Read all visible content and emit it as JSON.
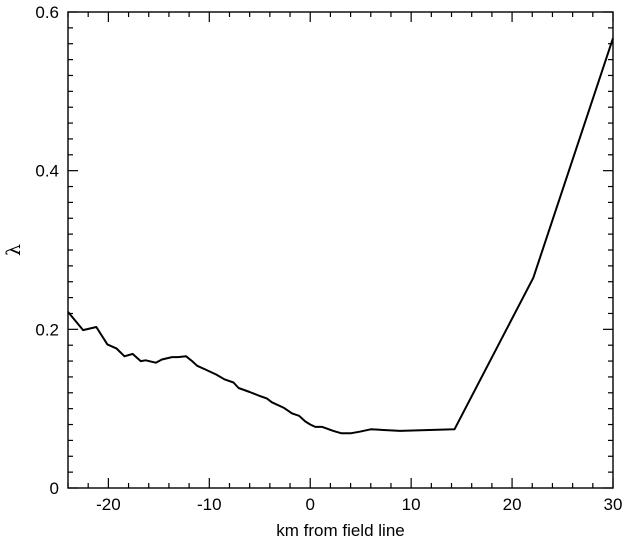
{
  "chart_data": {
    "type": "line",
    "title": "",
    "xlabel": "km from field line",
    "ylabel": "λ",
    "xlim": [
      -24,
      30
    ],
    "ylim": [
      0,
      0.6
    ],
    "x_ticks": [
      -20,
      -10,
      0,
      10,
      20,
      30
    ],
    "x_tick_labels": [
      "-20",
      "-10",
      "0",
      "10",
      "20",
      "30"
    ],
    "y_ticks": [
      0,
      0.2,
      0.4,
      0.6
    ],
    "y_tick_labels": [
      "0",
      "0.2",
      "0.4",
      "0.6"
    ],
    "x_minor_step": 2,
    "y_minor_step": 0.02,
    "grid": false,
    "line_color": "#000000",
    "series": [
      {
        "x": [
          -24,
          -22.5,
          -21.2,
          -20.1,
          -19.2,
          -18.4,
          -17.6,
          -16.8,
          -16.3,
          -15.3,
          -14.7,
          -13.7,
          -13.1,
          -12.3,
          -11.7,
          -11.2,
          -10.5,
          -9.3,
          -8.5,
          -7.6,
          -7.1,
          -6.0,
          -5.0,
          -4.3,
          -3.8,
          -2.6,
          -1.8,
          -1.1,
          -0.5,
          0.0,
          0.5,
          1.2,
          2.3,
          3.1,
          4.0,
          4.9,
          6.0,
          8.9,
          14.3,
          22.1,
          30.0
        ],
        "y": [
          0.222,
          0.199,
          0.203,
          0.181,
          0.176,
          0.166,
          0.169,
          0.16,
          0.161,
          0.158,
          0.162,
          0.165,
          0.165,
          0.166,
          0.16,
          0.154,
          0.15,
          0.143,
          0.137,
          0.133,
          0.126,
          0.121,
          0.116,
          0.113,
          0.108,
          0.101,
          0.094,
          0.091,
          0.084,
          0.08,
          0.077,
          0.077,
          0.072,
          0.069,
          0.069,
          0.071,
          0.074,
          0.072,
          0.074,
          0.265,
          0.567
        ]
      }
    ]
  }
}
